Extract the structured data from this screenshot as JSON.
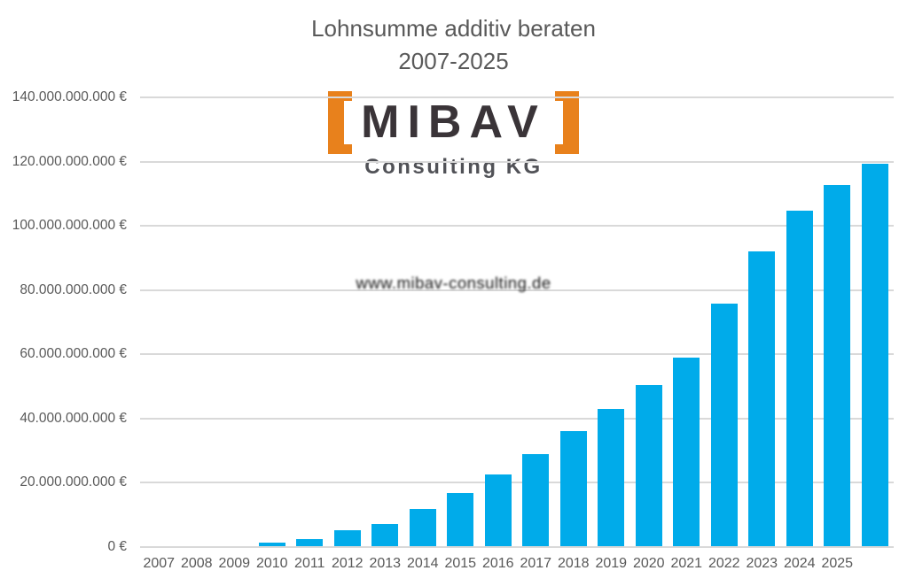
{
  "title": {
    "line1": "Lohnsumme additiv beraten",
    "line2": "2007-2025"
  },
  "logo": {
    "name": "MIBAV",
    "subtitle": "Consulting KG",
    "url_line": "www.mibav-consulting.de",
    "orange": "#E8811C",
    "name_color": "#3A3438",
    "subtitle_color": "#515257"
  },
  "chart_data": {
    "type": "bar",
    "title": "Lohnsumme additiv beraten",
    "subtitle": "2007-2025",
    "legend": "none",
    "grid": "horizontal",
    "background_color": "#FFFFFF",
    "bar_color": "#00ABEA",
    "gridline_color": "#D9D9D9",
    "axis_text_color": "#595959",
    "y_axis": {
      "max_eur_bn": 140,
      "ylim_eur": [
        0,
        140000000000
      ],
      "tick_step_eur": 20000000000,
      "ticks": [
        {
          "label": "140.000.000.000 €",
          "value_eur_bn": 140
        },
        {
          "label": "120.000.000.000 €",
          "value_eur_bn": 120
        },
        {
          "label": "100.000.000.000 €",
          "value_eur_bn": 100
        },
        {
          "label": "80.000.000.000 €",
          "value_eur_bn": 80
        },
        {
          "label": "60.000.000.000 €",
          "value_eur_bn": 60
        },
        {
          "label": "40.000.000.000 €",
          "value_eur_bn": 40
        },
        {
          "label": "20.000.000.000 €",
          "value_eur_bn": 20
        },
        {
          "label": "0 €",
          "value_eur_bn": 0
        }
      ]
    },
    "slots": [
      {
        "label": "2007",
        "value_eur_bn": null
      },
      {
        "label": "2008",
        "value_eur_bn": null
      },
      {
        "label": "2009",
        "value_eur_bn": 0.4
      },
      {
        "label": "2010",
        "value_eur_bn": 1.3
      },
      {
        "label": "2011",
        "value_eur_bn": 2.6
      },
      {
        "label": "2012",
        "value_eur_bn": 5.2
      },
      {
        "label": "2013",
        "value_eur_bn": 7.3
      },
      {
        "label": "2014",
        "value_eur_bn": 11.8
      },
      {
        "label": "2015",
        "value_eur_bn": 16.8
      },
      {
        "label": "2016",
        "value_eur_bn": 22.6
      },
      {
        "label": "2017",
        "value_eur_bn": 28.9
      },
      {
        "label": "2018",
        "value_eur_bn": 36.0
      },
      {
        "label": "2019",
        "value_eur_bn": 43.1
      },
      {
        "label": "2020",
        "value_eur_bn": 50.5
      },
      {
        "label": "2021",
        "value_eur_bn": 59.1
      },
      {
        "label": "2022",
        "value_eur_bn": 75.7
      },
      {
        "label": "2023",
        "value_eur_bn": 92.1
      },
      {
        "label": "2024",
        "value_eur_bn": 104.8
      },
      {
        "label": "2025",
        "value_eur_bn": 112.6
      },
      {
        "label": "",
        "value_eur_bn": 119.2
      }
    ]
  }
}
